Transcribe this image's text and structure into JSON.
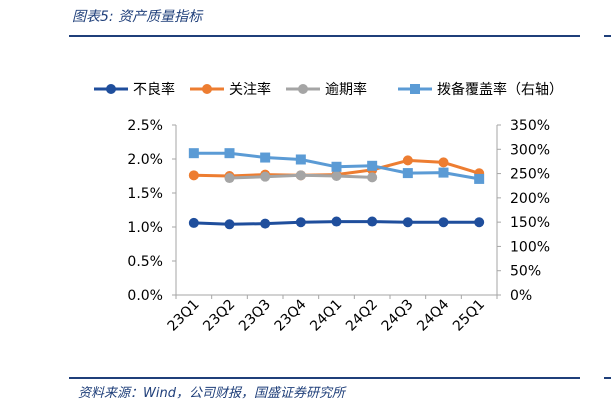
{
  "figure": {
    "title": "图表5:  资产质量指标",
    "source": "资料来源：Wind，公司财报，国盛证券研究所"
  },
  "chart_data": {
    "type": "line",
    "categories": [
      "23Q1",
      "23Q2",
      "23Q3",
      "23Q4",
      "24Q1",
      "24Q2",
      "24Q3",
      "24Q4",
      "25Q1"
    ],
    "series": [
      {
        "name": "不良率",
        "axis": "left",
        "color": "#1f4e9c",
        "marker": "circle",
        "values": [
          1.06,
          1.04,
          1.05,
          1.07,
          1.08,
          1.08,
          1.07,
          1.07,
          1.07
        ]
      },
      {
        "name": "关注率",
        "axis": "left",
        "color": "#ed7d31",
        "marker": "circle",
        "values": [
          1.76,
          1.75,
          1.77,
          1.76,
          1.77,
          1.84,
          1.98,
          1.95,
          1.79
        ]
      },
      {
        "name": "逾期率",
        "axis": "left",
        "color": "#a5a5a5",
        "marker": "circle",
        "values": [
          null,
          1.72,
          1.74,
          1.76,
          1.75,
          1.73,
          null,
          null,
          null
        ]
      },
      {
        "name": "拨备覆盖率（右轴）",
        "axis": "right",
        "color": "#5b9bd5",
        "marker": "square",
        "values": [
          292,
          292,
          283,
          279,
          264,
          266,
          251,
          252,
          239
        ]
      }
    ],
    "yleft": {
      "lim": [
        0,
        2.5
      ],
      "ticks": [
        0,
        0.5,
        1.0,
        1.5,
        2.0,
        2.5
      ],
      "tick_labels": [
        "0.0%",
        "0.5%",
        "1.0%",
        "1.5%",
        "2.0%",
        "2.5%"
      ]
    },
    "yright": {
      "lim": [
        0,
        350
      ],
      "ticks": [
        0,
        50,
        100,
        150,
        200,
        250,
        300,
        350
      ],
      "tick_labels": [
        "0%",
        "50%",
        "100%",
        "150%",
        "200%",
        "250%",
        "300%",
        "350%"
      ]
    },
    "legend_position": "top",
    "grid": false
  }
}
